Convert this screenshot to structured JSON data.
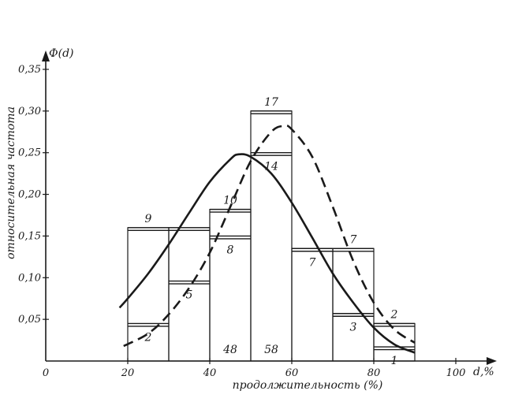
{
  "chart_data": {
    "type": "bar",
    "ylabel": "относительная частота",
    "ylabel_short": "Ф(d)",
    "xlabel": "продолжительность (%)",
    "x_unit_label": "d,%",
    "xlim": [
      0,
      100
    ],
    "ylim": [
      0,
      0.35
    ],
    "x_ticks": [
      "0",
      "20",
      "40",
      "60",
      "80",
      "100"
    ],
    "y_ticks": [
      "0,05",
      "0,10",
      "0,15",
      "0,20",
      "0,25",
      "0,30",
      "0,35"
    ],
    "groups": [
      {
        "x0": 20,
        "x1": 30,
        "a": 0.16,
        "b": 0.045,
        "a_label": "9",
        "b_label": "2"
      },
      {
        "x0": 30,
        "x1": 40,
        "a": 0.16,
        "b": 0.096,
        "a_label": "",
        "b_label": "5"
      },
      {
        "x0": 40,
        "x1": 50,
        "a": 0.182,
        "b": 0.15,
        "a_label": "10",
        "b_label": "8"
      },
      {
        "x0": 50,
        "x1": 60,
        "a": 0.3,
        "b": 0.25,
        "a_label": "17",
        "b_label": "14"
      },
      {
        "x0": 60,
        "x1": 70,
        "a": 0.135,
        "b": 0.135,
        "a_label": "",
        "b_label": "7"
      },
      {
        "x0": 70,
        "x1": 80,
        "a": 0.135,
        "b": 0.057,
        "a_label": "7",
        "b_label": "3"
      },
      {
        "x0": 80,
        "x1": 90,
        "a": 0.045,
        "b": 0.017,
        "a_label": "2",
        "b_label": "1"
      }
    ],
    "counts": [
      {
        "x": 45,
        "label": "48"
      },
      {
        "x": 55,
        "label": "58"
      }
    ],
    "series": [
      {
        "style": "solid",
        "x": [
          18,
          20,
          25,
          30,
          35,
          40,
          45,
          47,
          50,
          55,
          60,
          65,
          70,
          75,
          80,
          85,
          90
        ],
        "y": [
          0.064,
          0.075,
          0.105,
          0.14,
          0.178,
          0.215,
          0.242,
          0.248,
          0.245,
          0.225,
          0.19,
          0.148,
          0.105,
          0.07,
          0.04,
          0.02,
          0.01
        ]
      },
      {
        "style": "dashed",
        "x": [
          19,
          25,
          30,
          35,
          40,
          45,
          50,
          55,
          58,
          60,
          65,
          70,
          75,
          80,
          85,
          90
        ],
        "y": [
          0.018,
          0.033,
          0.056,
          0.088,
          0.13,
          0.185,
          0.24,
          0.275,
          0.282,
          0.278,
          0.245,
          0.185,
          0.12,
          0.07,
          0.038,
          0.022
        ]
      }
    ]
  }
}
